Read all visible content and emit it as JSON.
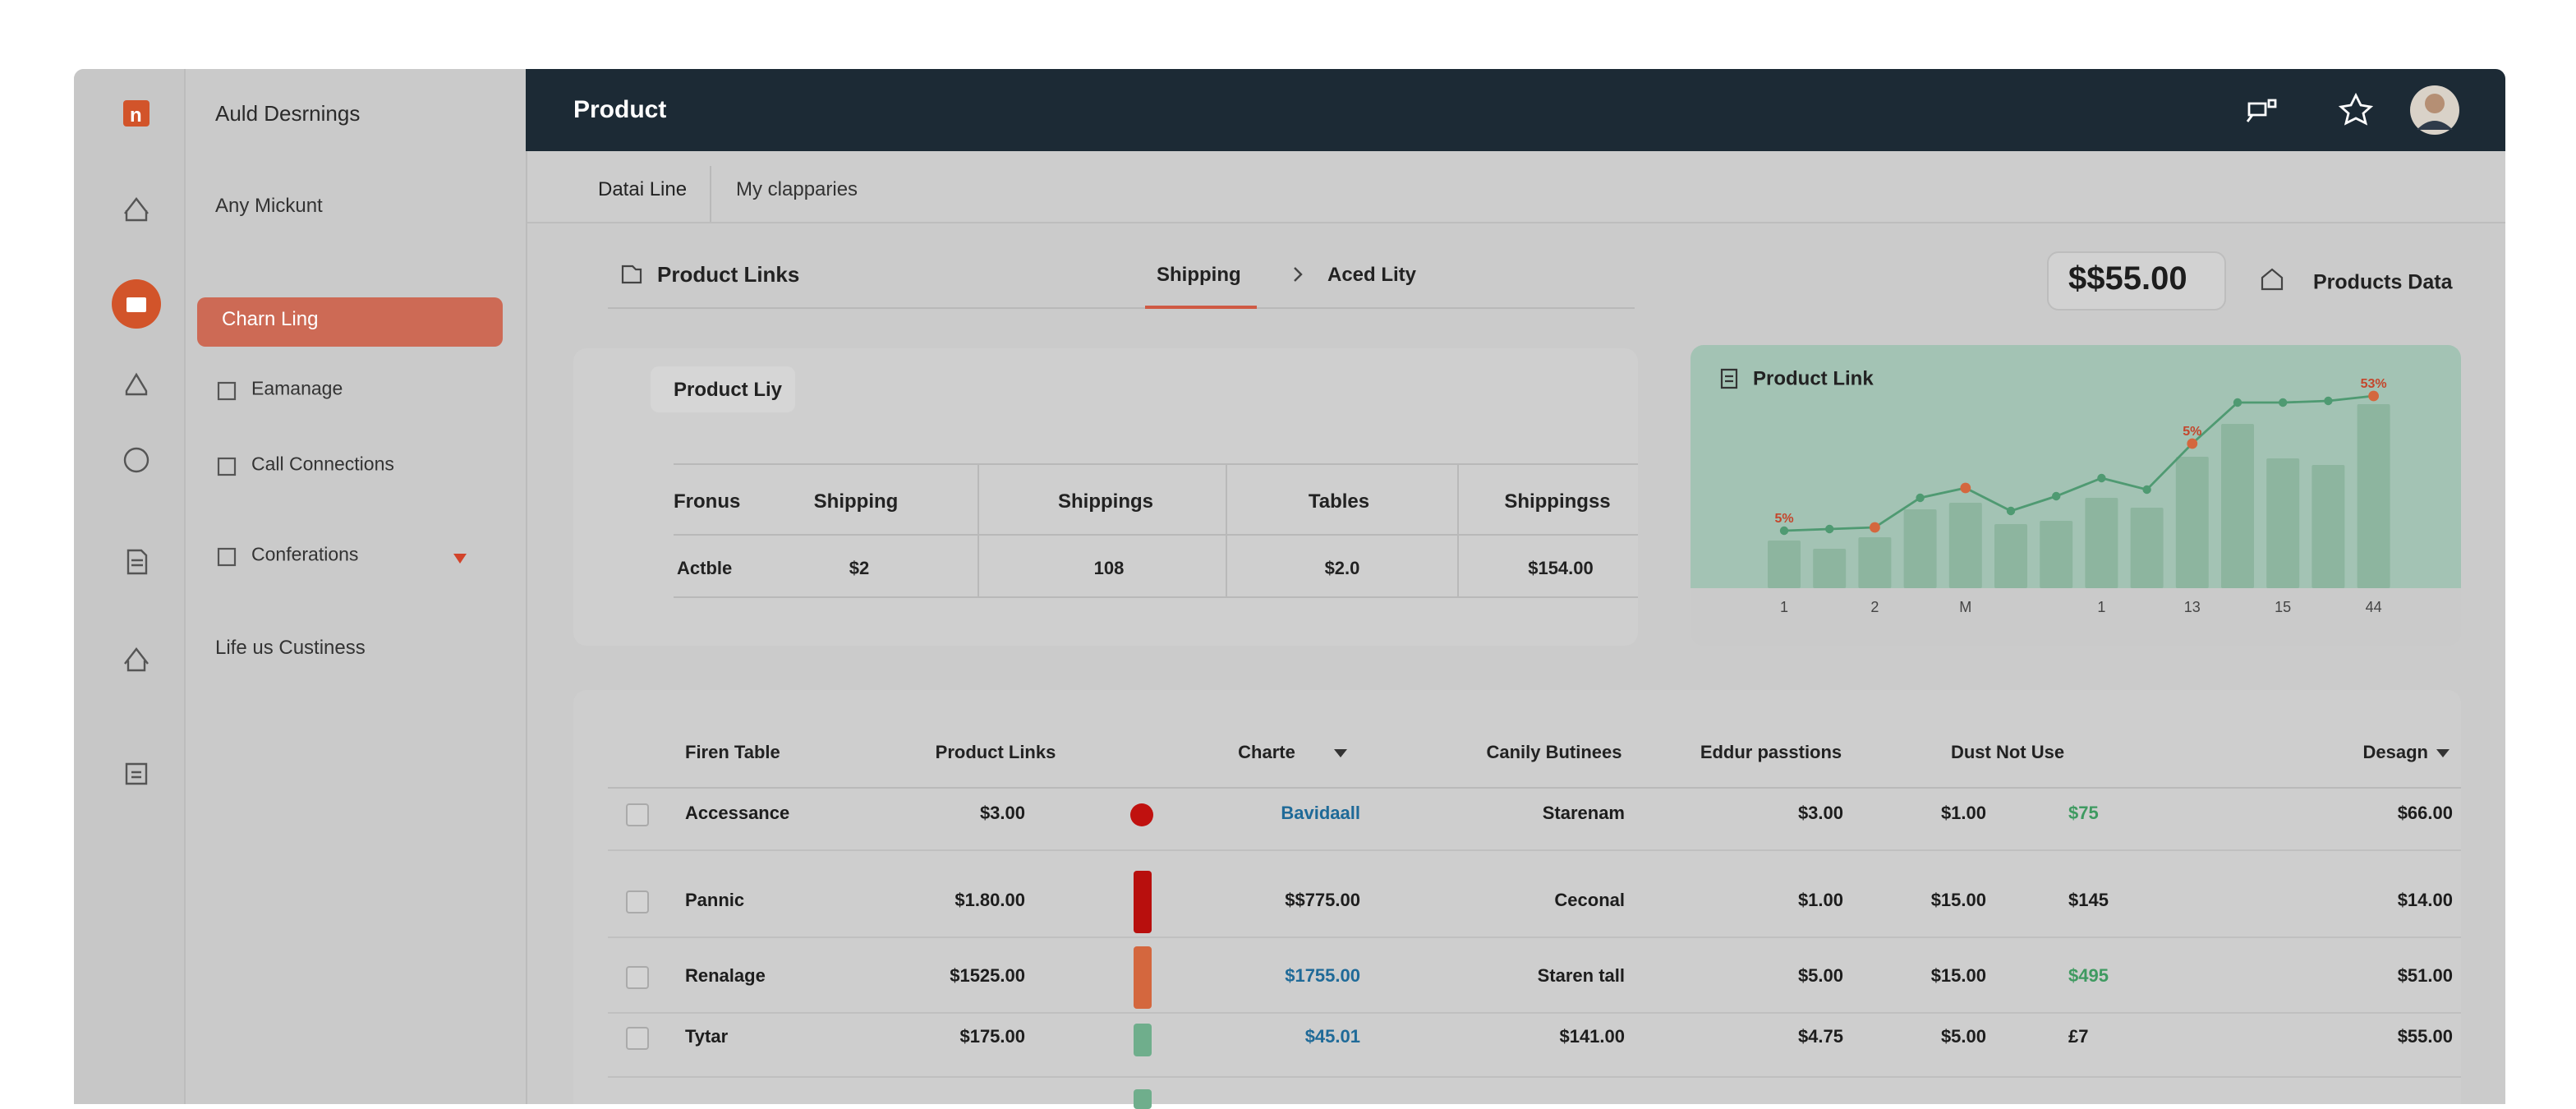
{
  "logo": "n",
  "sidebar": {
    "title": "Auld Desrnings",
    "items": [
      "Any Mickunt",
      "Charn Ling",
      "Eamanage",
      "Call Connections",
      "Conferations",
      "Life us Custiness"
    ]
  },
  "header": {
    "title": "Product"
  },
  "tabs": [
    "Datai Line",
    "My clapparies"
  ],
  "toolbar": {
    "title": "Product Links",
    "tabs": [
      "Shipping",
      "Aced Lity"
    ],
    "price": "$$55.00",
    "products": "Products Data"
  },
  "summary": {
    "tag": "Product Liy",
    "columns": [
      "Fronus",
      "Shipping",
      "Shippings",
      "Tables",
      "Shippingss"
    ],
    "rows": [
      [
        "Actble",
        "$2",
        "108",
        "$2.0",
        "$154.00"
      ]
    ]
  },
  "chart": {
    "type": "bar",
    "title": "Product Link",
    "categories": [
      "1",
      null,
      "2",
      null,
      "M",
      null,
      null,
      "1",
      null,
      "13",
      null,
      "15",
      null,
      "44"
    ],
    "series": [
      {
        "type": "bar",
        "color": "#8db59f",
        "values": [
          29,
          24,
          31,
          48,
          52,
          39,
          41,
          55,
          49,
          80,
          100,
          79,
          75,
          112
        ]
      },
      {
        "type": "line",
        "color": "#4f9a72",
        "values": [
          35,
          36,
          37,
          55,
          61,
          47,
          56,
          67,
          60,
          88,
          113,
          113,
          114,
          117
        ]
      }
    ],
    "ylim": [
      0,
      120
    ],
    "highlight_color": "#d4673e",
    "highlights": [
      2,
      4,
      9,
      13
    ],
    "annotations": [
      {
        "index": 0,
        "label": "5%"
      },
      {
        "index": 9,
        "label": "5%"
      },
      {
        "index": 13,
        "label": "53%"
      }
    ]
  },
  "table": {
    "columns": [
      "Firen Table",
      "Product Links",
      "Charte",
      "Canily Butinees",
      "Eddur passtions",
      "Dust Not Use",
      "Desagn"
    ],
    "rows": [
      {
        "cells": [
          "Accessance",
          "$3.00",
          "Bavidaall",
          "Starenam",
          "$3.00",
          "$1.00",
          "$75",
          "$66.00"
        ],
        "marker": "#c0110f",
        "marker_shape": "dot",
        "link": "#1f6a98",
        "extra": "#3f9a61"
      },
      {
        "cells": [
          "Pannic",
          "$1.80.00",
          "$$775.00",
          "Ceconal",
          "$1.00",
          "$15.00",
          "$145",
          "$14.00"
        ],
        "marker": "#b80f0d",
        "marker_shape": "bar",
        "link": null,
        "extra": null
      },
      {
        "cells": [
          "Renalage",
          "$1525.00",
          "$1755.00",
          "Staren tall",
          "$5.00",
          "$15.00",
          "$495",
          "$51.00"
        ],
        "marker": "#d4673e",
        "marker_shape": "bar",
        "link": "#1f6a98",
        "extra": "#3f9a61"
      },
      {
        "cells": [
          "Tytar",
          "$175.00",
          "$45.01",
          "$141.00",
          "$4.75",
          "$5.00",
          "£7",
          "$55.00"
        ],
        "marker": "#6fae8c",
        "marker_shape": "bar",
        "link": "#1f6a98",
        "extra": null
      }
    ]
  }
}
